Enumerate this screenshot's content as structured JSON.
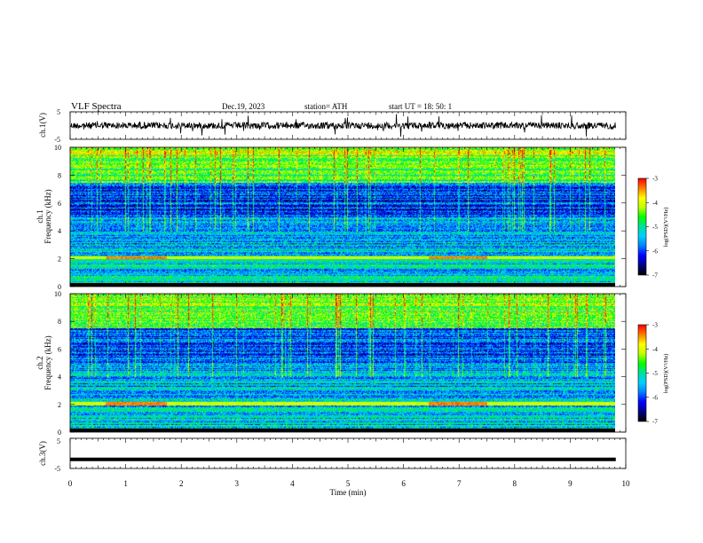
{
  "header": {
    "title": "VLF  Spectra",
    "date": "Dec.19, 2023",
    "station": "station= ATH",
    "start": "start  UT  =   18: 50: 1"
  },
  "colors": {
    "colormap": [
      "#000000",
      "#00008b",
      "#0000ff",
      "#0080ff",
      "#00d0ff",
      "#00e0a0",
      "#00ff00",
      "#c0ff00",
      "#ffff00",
      "#ff8000",
      "#ff0000",
      "#ffffff"
    ],
    "trace": "#000000"
  },
  "chart_data": [
    {
      "type": "line",
      "ylabel": "ch.1(V)",
      "ylim": [
        -5,
        5
      ],
      "yticks": [
        "5",
        "-5"
      ],
      "series": [
        {
          "description": "ch.1 waveform, noisy around 0 V",
          "level": 0.0,
          "amplitude": 1.2
        }
      ]
    },
    {
      "type": "heatmap",
      "ylabel": "ch.1\nFrequency  (kHz)",
      "ylim": [
        0,
        10
      ],
      "yticks": [
        "0",
        "2",
        "4",
        "6",
        "8",
        "10"
      ],
      "colorbar": {
        "label": "log(PSD)(V²/Hz)",
        "ticks": [
          "-3",
          "-4",
          "-5",
          "-6",
          "-7"
        ],
        "range": [
          -7,
          -3
        ]
      },
      "features": {
        "high_band_kHz": [
          7.5,
          10
        ],
        "strong_line_kHz": 2.1,
        "strong_line_segments_min": [
          [
            0.65,
            1.8
          ],
          [
            6.7,
            7.8
          ]
        ]
      }
    },
    {
      "type": "heatmap",
      "ylabel": "ch.2\nFrequency  (kHz)",
      "ylim": [
        0,
        10
      ],
      "yticks": [
        "0",
        "2",
        "4",
        "6",
        "8",
        "10"
      ],
      "colorbar": {
        "label": "log(PSD)(V²/Hz)",
        "ticks": [
          "-3",
          "-4",
          "-5",
          "-6",
          "-7"
        ],
        "range": [
          -7,
          -3
        ]
      },
      "features": {
        "high_band_kHz": [
          7.5,
          10
        ],
        "strong_line_kHz": 2.1,
        "strong_line_segments_min": [
          [
            0.65,
            1.8
          ],
          [
            6.7,
            7.8
          ]
        ]
      }
    },
    {
      "type": "line",
      "ylabel": "ch.3(V)",
      "ylim": [
        -5,
        5
      ],
      "yticks": [
        "5",
        "-5"
      ],
      "series": [
        {
          "description": "ch.3 flat level",
          "level": -2.0,
          "amplitude": 0.0
        }
      ]
    }
  ],
  "xaxis": {
    "xlabel": "Time  (min)",
    "xlim": [
      0,
      10
    ],
    "ticks": [
      "0",
      "1",
      "2",
      "3",
      "4",
      "5",
      "6",
      "7",
      "8",
      "9",
      "10"
    ],
    "data_end_min": 9.82
  }
}
